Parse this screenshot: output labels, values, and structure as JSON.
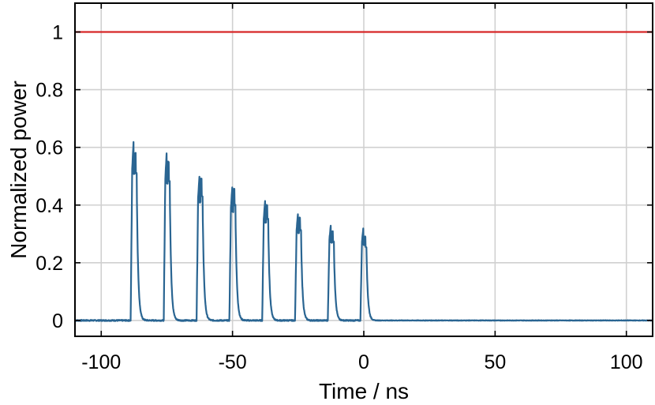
{
  "chart_data": {
    "type": "line",
    "title": "",
    "xlabel": "Time / ns",
    "ylabel": "Normalized power",
    "xlim": [
      -110,
      110
    ],
    "ylim": [
      -0.055,
      1.1
    ],
    "xticks": [
      -100,
      -50,
      0,
      50,
      100
    ],
    "xtick_labels": [
      "-100",
      "-50",
      "0",
      "50",
      "100"
    ],
    "yticks": [
      0,
      0.2,
      0.4,
      0.6,
      0.8,
      1
    ],
    "ytick_labels": [
      "0",
      "0.2",
      "0.4",
      "0.6",
      "0.8",
      "1"
    ],
    "grid": true,
    "legend": "none",
    "series": [
      {
        "color": "#2a6592",
        "pulses": [
          {
            "center": -86.9,
            "peak1": 0.62,
            "peak2": 0.58
          },
          {
            "center": -74.3,
            "peak1": 0.58,
            "peak2": 0.55
          },
          {
            "center": -61.8,
            "peak1": 0.5,
            "peak2": 0.49
          },
          {
            "center": -49.3,
            "peak1": 0.46,
            "peak2": 0.455
          },
          {
            "center": -36.8,
            "peak1": 0.415,
            "peak2": 0.4
          },
          {
            "center": -24.3,
            "peak1": 0.37,
            "peak2": 0.355
          },
          {
            "center": -11.8,
            "peak1": 0.33,
            "peak2": 0.31
          },
          {
            "center": 0.6,
            "peak1": 0.32,
            "peak2": 0.29
          }
        ],
        "baseline": 0
      },
      {
        "color": "#d62728",
        "x": [
          -110,
          110
        ],
        "y": [
          1,
          1
        ]
      }
    ]
  }
}
